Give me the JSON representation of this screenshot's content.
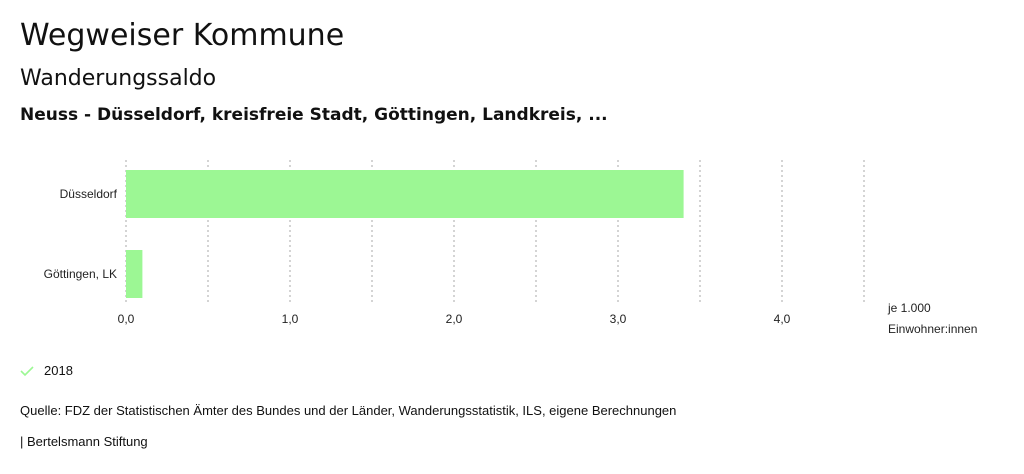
{
  "header": {
    "title": "Wegweiser Kommune",
    "subtitle": "Wanderungssaldo",
    "selection": "Neuss - Düsseldorf, kreisfreie Stadt, Göttingen, Landkreis, ..."
  },
  "chart_data": {
    "type": "bar",
    "orientation": "horizontal",
    "categories": [
      "Düsseldorf",
      "Göttingen, LK"
    ],
    "series": [
      {
        "name": "2018",
        "values": [
          3.4,
          0.1
        ],
        "color": "#9cf794"
      }
    ],
    "xlim": [
      0,
      4.5
    ],
    "xticks": [
      0,
      1,
      2,
      3,
      4
    ],
    "xtick_labels": [
      "0,0",
      "1,0",
      "2,0",
      "3,0",
      "4,0"
    ],
    "gridlines": [
      0,
      0.5,
      1,
      1.5,
      2,
      2.5,
      3,
      3.5,
      4,
      4.5
    ],
    "unit_label": [
      "je 1.000",
      "Einwohner:innen"
    ],
    "legend_position": "bottom-left"
  },
  "legend": {
    "label": "2018",
    "color": "#9cf794"
  },
  "source": "Quelle: FDZ der Statistischen Ämter des Bundes und der Länder, Wanderungsstatistik, ILS, eigene Berechnungen",
  "footer": "| Bertelsmann Stiftung"
}
